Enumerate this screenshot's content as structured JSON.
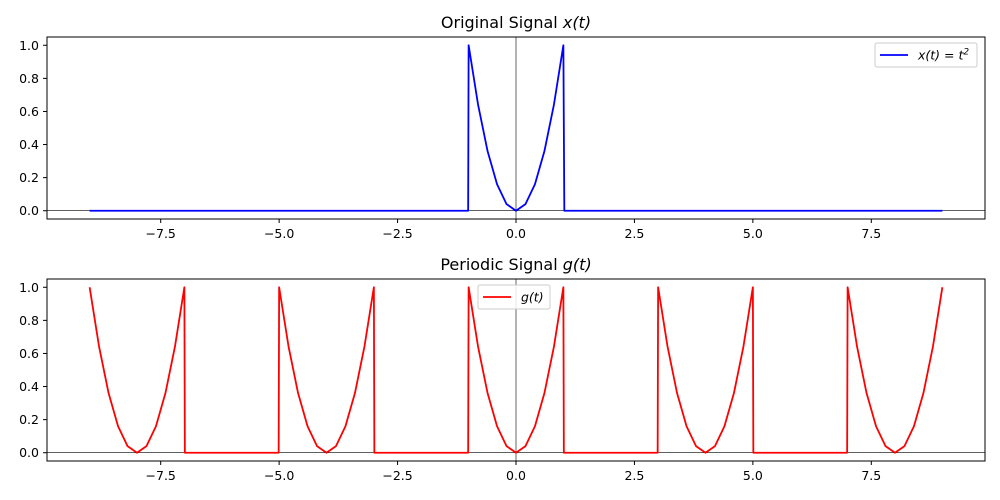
{
  "chart_data": [
    {
      "type": "line",
      "title": "Original Signal x(t)",
      "title_parts": {
        "text": "Original Signal ",
        "math": "x(t)"
      },
      "xlim": [
        -9.9,
        9.9
      ],
      "ylim": [
        -0.05,
        1.05
      ],
      "xticks": [
        -7.5,
        -5.0,
        -2.5,
        0.0,
        2.5,
        5.0,
        7.5
      ],
      "xtick_labels": [
        "−7.5",
        "−5.0",
        "−2.5",
        "0.0",
        "2.5",
        "5.0",
        "7.5"
      ],
      "yticks": [
        0.0,
        0.2,
        0.4,
        0.6,
        0.8,
        1.0
      ],
      "ytick_labels": [
        "0.0",
        "0.2",
        "0.4",
        "0.6",
        "0.8",
        "1.0"
      ],
      "grid": false,
      "reference_lines": {
        "x": 0,
        "y": 0
      },
      "legend": {
        "placement": "upper right"
      },
      "series": [
        {
          "name": "x(t) = t²",
          "legend_parts": {
            "math": "x(t) = t",
            "sup": "2"
          },
          "color": "#0000ff",
          "x": [
            -9,
            -1.01,
            -1.0,
            -0.8,
            -0.6,
            -0.4,
            -0.2,
            0.0,
            0.2,
            0.4,
            0.6,
            0.8,
            1.0,
            1.02,
            9
          ],
          "y": [
            0,
            0,
            1.0,
            0.64,
            0.36,
            0.16,
            0.04,
            0.0,
            0.04,
            0.16,
            0.36,
            0.64,
            1.0,
            0,
            0
          ]
        }
      ]
    },
    {
      "type": "line",
      "title": "Periodic Signal g(t)",
      "title_parts": {
        "text": "Periodic Signal ",
        "math": "g(t)"
      },
      "xlim": [
        -9.9,
        9.9
      ],
      "ylim": [
        -0.05,
        1.05
      ],
      "xticks": [
        -7.5,
        -5.0,
        -2.5,
        0.0,
        2.5,
        5.0,
        7.5
      ],
      "xtick_labels": [
        "−7.5",
        "−5.0",
        "−2.5",
        "0.0",
        "2.5",
        "5.0",
        "7.5"
      ],
      "yticks": [
        0.0,
        0.2,
        0.4,
        0.6,
        0.8,
        1.0
      ],
      "ytick_labels": [
        "0.0",
        "0.2",
        "0.4",
        "0.6",
        "0.8",
        "1.0"
      ],
      "grid": false,
      "reference_lines": {
        "x": 0,
        "y": 0
      },
      "legend": {
        "placement": "upper center"
      },
      "series": [
        {
          "name": "g(t)",
          "legend_parts": {
            "math": "g(t)",
            "sup": ""
          },
          "color": "#ff0000",
          "x": [
            -9.0,
            -8.8,
            -8.6,
            -8.4,
            -8.2,
            -8.0,
            -7.8,
            -7.6,
            -7.4,
            -7.2,
            -7.0,
            -6.99,
            -5.01,
            -5.0,
            -4.8,
            -4.6,
            -4.4,
            -4.2,
            -4.0,
            -3.8,
            -3.6,
            -3.4,
            -3.2,
            -3.0,
            -2.99,
            -1.01,
            -1.0,
            -0.8,
            -0.6,
            -0.4,
            -0.2,
            0.0,
            0.2,
            0.4,
            0.6,
            0.8,
            1.0,
            1.01,
            2.99,
            3.0,
            3.2,
            3.4,
            3.6,
            3.8,
            4.0,
            4.2,
            4.4,
            4.6,
            4.8,
            5.0,
            5.01,
            6.99,
            7.0,
            7.2,
            7.4,
            7.6,
            7.8,
            8.0,
            8.2,
            8.4,
            8.6,
            8.8,
            9.0
          ],
          "y": [
            1.0,
            0.64,
            0.36,
            0.16,
            0.04,
            0.0,
            0.04,
            0.16,
            0.36,
            0.64,
            1.0,
            0,
            0,
            1.0,
            0.64,
            0.36,
            0.16,
            0.04,
            0.0,
            0.04,
            0.16,
            0.36,
            0.64,
            1.0,
            0,
            0,
            1.0,
            0.64,
            0.36,
            0.16,
            0.04,
            0.0,
            0.04,
            0.16,
            0.36,
            0.64,
            1.0,
            0,
            0,
            1.0,
            0.64,
            0.36,
            0.16,
            0.04,
            0.0,
            0.04,
            0.16,
            0.36,
            0.64,
            1.0,
            0,
            0,
            1.0,
            0.64,
            0.36,
            0.16,
            0.04,
            0.0,
            0.04,
            0.16,
            0.36,
            0.64,
            1.0
          ]
        }
      ]
    }
  ]
}
